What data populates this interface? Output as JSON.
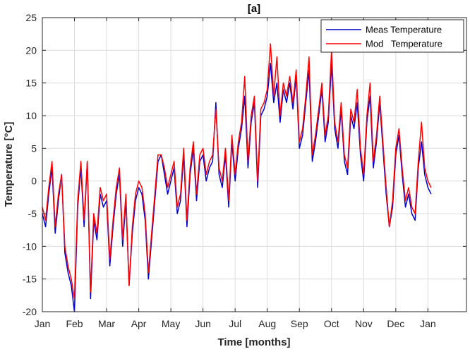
{
  "chart_data": {
    "type": "line",
    "title": "[a]",
    "xlabel": "Time [months]",
    "ylabel": "Temperature [°C]",
    "ylim": [
      -20,
      25
    ],
    "xlim": [
      0,
      13.2
    ],
    "y_ticks": [
      -20,
      -15,
      -10,
      -5,
      0,
      5,
      10,
      15,
      20,
      25
    ],
    "x_ticks": [
      {
        "pos": 0,
        "label": "Jan"
      },
      {
        "pos": 1,
        "label": "Feb"
      },
      {
        "pos": 2,
        "label": "Mar"
      },
      {
        "pos": 3,
        "label": "Apr"
      },
      {
        "pos": 4,
        "label": "May"
      },
      {
        "pos": 5,
        "label": "Jun"
      },
      {
        "pos": 6,
        "label": "Jul"
      },
      {
        "pos": 7,
        "label": "Aug"
      },
      {
        "pos": 8,
        "label": "Sep"
      },
      {
        "pos": 9,
        "label": "Oct"
      },
      {
        "pos": 10,
        "label": "Nov"
      },
      {
        "pos": 11,
        "label": "Dec"
      },
      {
        "pos": 12,
        "label": "Jan"
      }
    ],
    "grid": true,
    "legend_position": "top-right",
    "series": [
      {
        "name": "Meas Temperature",
        "color": "#0000cc",
        "x": [
          0,
          0.1,
          0.2,
          0.3,
          0.4,
          0.5,
          0.6,
          0.7,
          0.8,
          0.9,
          1.0,
          1.1,
          1.2,
          1.3,
          1.4,
          1.5,
          1.6,
          1.7,
          1.8,
          1.9,
          2.0,
          2.1,
          2.2,
          2.3,
          2.4,
          2.5,
          2.6,
          2.7,
          2.8,
          2.9,
          3.0,
          3.1,
          3.2,
          3.3,
          3.4,
          3.5,
          3.6,
          3.7,
          3.8,
          3.9,
          4.0,
          4.1,
          4.2,
          4.3,
          4.4,
          4.5,
          4.6,
          4.7,
          4.8,
          4.9,
          5.0,
          5.1,
          5.2,
          5.3,
          5.4,
          5.5,
          5.6,
          5.7,
          5.8,
          5.9,
          6.0,
          6.1,
          6.2,
          6.3,
          6.4,
          6.5,
          6.6,
          6.7,
          6.8,
          6.9,
          7.0,
          7.1,
          7.2,
          7.3,
          7.4,
          7.5,
          7.6,
          7.7,
          7.8,
          7.9,
          8.0,
          8.1,
          8.2,
          8.3,
          8.4,
          8.5,
          8.6,
          8.7,
          8.8,
          8.9,
          9.0,
          9.1,
          9.2,
          9.3,
          9.4,
          9.5,
          9.6,
          9.7,
          9.8,
          9.9,
          10.0,
          10.1,
          10.2,
          10.3,
          10.4,
          10.5,
          10.6,
          10.7,
          10.8,
          10.9,
          11.0,
          11.1,
          11.2,
          11.3,
          11.4,
          11.5,
          11.6,
          11.7,
          11.8,
          11.9,
          12.0,
          12.1
        ],
        "y": [
          -5,
          -7,
          -2,
          2,
          -8,
          -3,
          1,
          -11,
          -14,
          -16,
          -20,
          -4,
          2,
          -7,
          3,
          -18,
          -6,
          -9,
          -2,
          -4,
          -3,
          -13,
          -7,
          -2,
          1,
          -10,
          -3,
          -16,
          -8,
          -3,
          -1,
          -2,
          -6,
          -15,
          -9,
          -3,
          3,
          4,
          1,
          -2,
          0,
          2,
          -5,
          -3,
          4,
          -7,
          1,
          5,
          -3,
          3,
          4,
          0,
          2,
          3,
          12,
          1,
          -1,
          4,
          -4,
          6,
          0,
          5,
          8,
          13,
          2,
          9,
          12,
          -1,
          10,
          11,
          13,
          18,
          12,
          15,
          9,
          14,
          12,
          15,
          11,
          16,
          5,
          7,
          12,
          17,
          3,
          6,
          10,
          14,
          6,
          9,
          18,
          8,
          5,
          11,
          3,
          1,
          10,
          8,
          12,
          4,
          0,
          9,
          13,
          2,
          6,
          12,
          5,
          -2,
          -7,
          -4,
          4,
          7,
          1,
          -4,
          -2,
          -5,
          -6,
          2,
          6,
          1,
          -1,
          -2
        ]
      },
      {
        "name": "Mod   Temperature",
        "color": "#ff0000",
        "x": [
          0,
          0.1,
          0.2,
          0.3,
          0.4,
          0.5,
          0.6,
          0.7,
          0.8,
          0.9,
          1.0,
          1.1,
          1.2,
          1.3,
          1.4,
          1.5,
          1.6,
          1.7,
          1.8,
          1.9,
          2.0,
          2.1,
          2.2,
          2.3,
          2.4,
          2.5,
          2.6,
          2.7,
          2.8,
          2.9,
          3.0,
          3.1,
          3.2,
          3.3,
          3.4,
          3.5,
          3.6,
          3.7,
          3.8,
          3.9,
          4.0,
          4.1,
          4.2,
          4.3,
          4.4,
          4.5,
          4.6,
          4.7,
          4.8,
          4.9,
          5.0,
          5.1,
          5.2,
          5.3,
          5.4,
          5.5,
          5.6,
          5.7,
          5.8,
          5.9,
          6.0,
          6.1,
          6.2,
          6.3,
          6.4,
          6.5,
          6.6,
          6.7,
          6.8,
          6.9,
          7.0,
          7.1,
          7.2,
          7.3,
          7.4,
          7.5,
          7.6,
          7.7,
          7.8,
          7.9,
          8.0,
          8.1,
          8.2,
          8.3,
          8.4,
          8.5,
          8.6,
          8.7,
          8.8,
          8.9,
          9.0,
          9.1,
          9.2,
          9.3,
          9.4,
          9.5,
          9.6,
          9.7,
          9.8,
          9.9,
          10.0,
          10.1,
          10.2,
          10.3,
          10.4,
          10.5,
          10.6,
          10.7,
          10.8,
          10.9,
          11.0,
          11.1,
          11.2,
          11.3,
          11.4,
          11.5,
          11.6,
          11.7,
          11.8,
          11.9,
          12.0,
          12.1
        ],
        "y": [
          -4,
          -6,
          -1,
          3,
          -7,
          -2,
          1,
          -10,
          -13,
          -15,
          -18,
          -3,
          3,
          -6,
          3,
          -17,
          -5,
          -8,
          -1,
          -3,
          -2,
          -12,
          -6,
          -1,
          2,
          -9,
          -2,
          -16,
          -7,
          -2,
          0,
          -1,
          -5,
          -14,
          -8,
          -2,
          4,
          4,
          2,
          -1,
          1,
          3,
          -4,
          -2,
          5,
          -6,
          2,
          6,
          -2,
          4,
          5,
          1,
          3,
          4,
          11,
          2,
          0,
          5,
          -3,
          7,
          1,
          6,
          9,
          16,
          3,
          10,
          13,
          0,
          11,
          12,
          14,
          21,
          13,
          19,
          10,
          15,
          13,
          16,
          12,
          17,
          6,
          8,
          13,
          19,
          4,
          7,
          11,
          15,
          7,
          10,
          20,
          9,
          6,
          12,
          4,
          2,
          11,
          9,
          14,
          5,
          1,
          10,
          15,
          3,
          7,
          13,
          6,
          -1,
          -7,
          -3,
          5,
          8,
          2,
          -3,
          -1,
          -4,
          -5,
          3,
          9,
          2,
          0,
          -1
        ]
      }
    ]
  }
}
